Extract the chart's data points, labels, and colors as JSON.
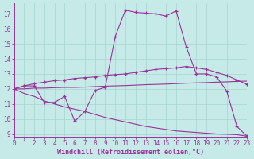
{
  "xlabel": "Windchill (Refroidissement éolien,°C)",
  "bg_color": "#c5eae7",
  "grid_color": "#a8d4d0",
  "line_color": "#993399",
  "xlim": [
    0,
    23
  ],
  "ylim": [
    8.8,
    17.7
  ],
  "yticks": [
    9,
    10,
    11,
    12,
    13,
    14,
    15,
    16,
    17
  ],
  "xticks": [
    0,
    1,
    2,
    3,
    4,
    5,
    6,
    7,
    8,
    9,
    10,
    11,
    12,
    13,
    14,
    15,
    16,
    17,
    18,
    19,
    20,
    21,
    22,
    23
  ],
  "spike_x": [
    0,
    1,
    2,
    3,
    4,
    5,
    6,
    7,
    8,
    9,
    10,
    11,
    12,
    13,
    14,
    15,
    16,
    17,
    18,
    19,
    20,
    21,
    22,
    23
  ],
  "spike_y": [
    12.0,
    12.2,
    12.2,
    11.1,
    11.1,
    11.5,
    9.85,
    10.5,
    11.9,
    12.1,
    15.5,
    17.25,
    17.1,
    17.05,
    17.0,
    16.85,
    17.2,
    14.8,
    13.0,
    13.0,
    12.8,
    11.85,
    9.5,
    8.85
  ],
  "upper_x": [
    0,
    1,
    2,
    3,
    4,
    5,
    6,
    7,
    8,
    9,
    10,
    11,
    12,
    13,
    14,
    15,
    16,
    17,
    18,
    19,
    20,
    21,
    22,
    23
  ],
  "upper_y": [
    12.0,
    12.2,
    12.35,
    12.45,
    12.55,
    12.6,
    12.7,
    12.75,
    12.8,
    12.9,
    12.95,
    13.0,
    13.1,
    13.2,
    13.3,
    13.35,
    13.4,
    13.5,
    13.4,
    13.3,
    13.1,
    12.9,
    12.6,
    12.3
  ],
  "mid_x": [
    0,
    1,
    2,
    3,
    4,
    5,
    6,
    7,
    8,
    9,
    10,
    11,
    12,
    13,
    14,
    15,
    16,
    17,
    18,
    19,
    20,
    21,
    22,
    23
  ],
  "mid_y": [
    12.0,
    12.0,
    12.05,
    12.05,
    12.08,
    12.1,
    12.1,
    12.12,
    12.15,
    12.18,
    12.2,
    12.22,
    12.25,
    12.28,
    12.3,
    12.32,
    12.35,
    12.38,
    12.4,
    12.42,
    12.45,
    12.47,
    12.5,
    12.52
  ],
  "lower_x": [
    0,
    1,
    2,
    3,
    4,
    5,
    6,
    7,
    8,
    9,
    10,
    11,
    12,
    13,
    14,
    15,
    16,
    17,
    18,
    19,
    20,
    21,
    22,
    23
  ],
  "lower_y": [
    12.0,
    11.7,
    11.5,
    11.2,
    11.0,
    10.8,
    10.65,
    10.5,
    10.3,
    10.1,
    9.95,
    9.8,
    9.65,
    9.5,
    9.4,
    9.3,
    9.2,
    9.15,
    9.1,
    9.05,
    9.0,
    8.98,
    8.95,
    8.85
  ],
  "tick_fontsize": 5.5,
  "label_fontsize": 6.0
}
